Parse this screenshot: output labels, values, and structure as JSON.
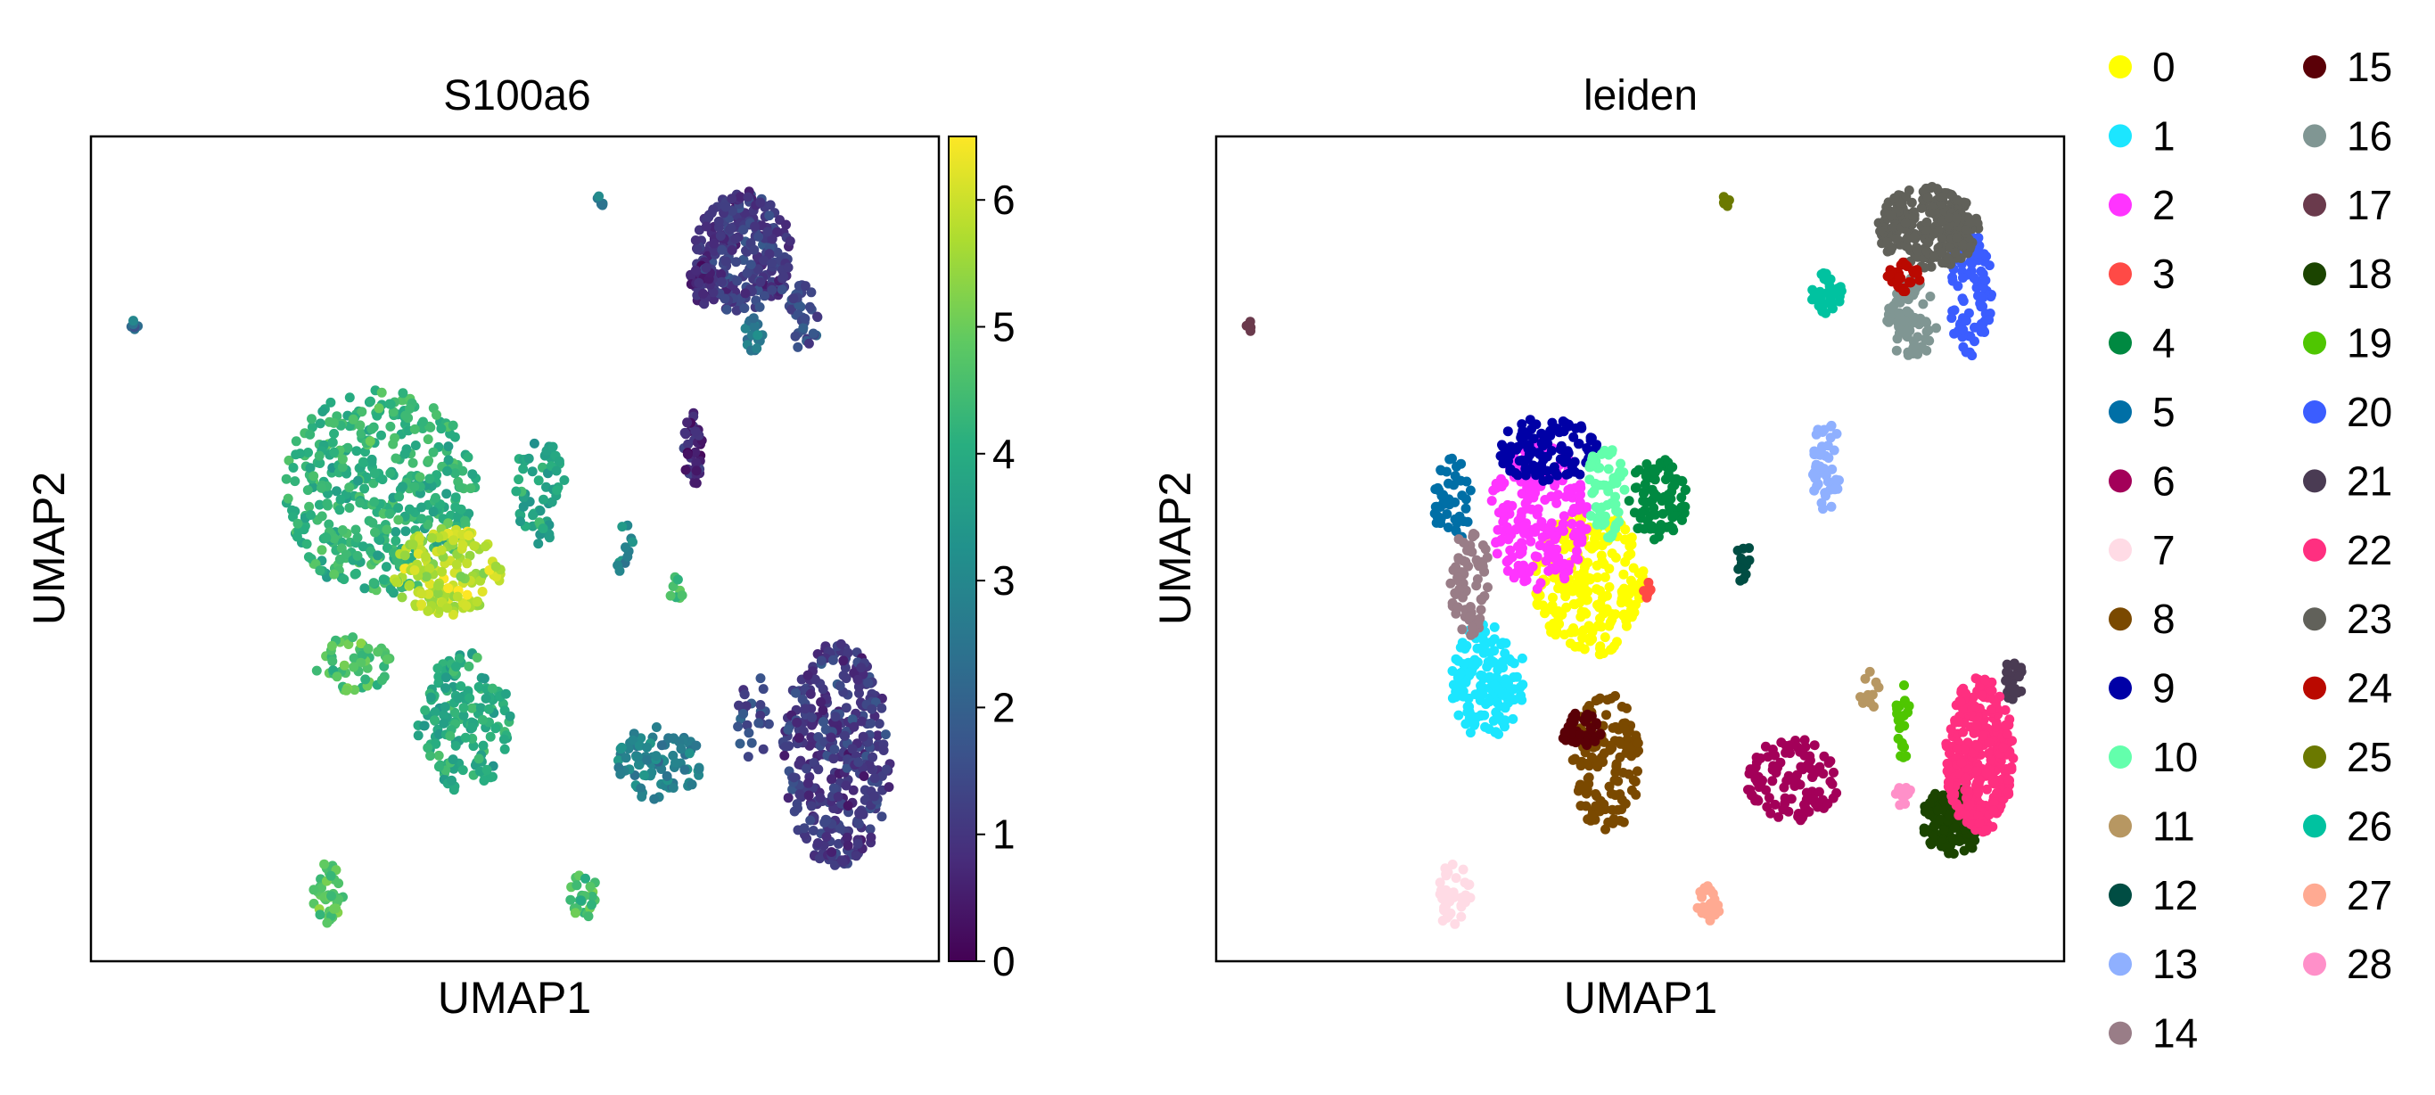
{
  "chart_data": [
    {
      "type": "scatter",
      "title": "S100a6",
      "xlabel": "UMAP1",
      "ylabel": "UMAP2",
      "x_range": [
        0,
        100
      ],
      "y_range": [
        0,
        100
      ],
      "colorbar": {
        "colormap": "viridis",
        "range": [
          0,
          6.5
        ],
        "ticks": [
          "0",
          "1",
          "2",
          "3",
          "4",
          "5",
          "6"
        ]
      },
      "clusters": [
        {
          "cx": 5,
          "cy": 77,
          "rx": 0.6,
          "ry": 0.8,
          "n": 6,
          "mean": 2.3
        },
        {
          "cx": 60,
          "cy": 92,
          "rx": 0.7,
          "ry": 0.9,
          "n": 6,
          "mean": 2.8
        },
        {
          "cx": 77,
          "cy": 86,
          "rx": 5.8,
          "ry": 7.5,
          "n": 280,
          "mean": 1.1
        },
        {
          "cx": 72,
          "cy": 82,
          "rx": 1.5,
          "ry": 2.5,
          "n": 35,
          "mean": 0.8
        },
        {
          "cx": 84,
          "cy": 78,
          "rx": 1.8,
          "ry": 4.2,
          "n": 40,
          "mean": 1.6
        },
        {
          "cx": 78,
          "cy": 76,
          "rx": 1.2,
          "ry": 2.0,
          "n": 20,
          "mean": 2.7
        },
        {
          "cx": 34,
          "cy": 57,
          "rx": 11.5,
          "ry": 12.5,
          "n": 420,
          "mean": 4.2
        },
        {
          "cx": 42,
          "cy": 47,
          "rx": 6.5,
          "ry": 5.5,
          "n": 160,
          "mean": 5.8
        },
        {
          "cx": 53,
          "cy": 57,
          "rx": 3.2,
          "ry": 6.5,
          "n": 60,
          "mean": 3.8
        },
        {
          "cx": 31,
          "cy": 36,
          "rx": 4.5,
          "ry": 3.5,
          "n": 50,
          "mean": 4.6
        },
        {
          "cx": 44,
          "cy": 29,
          "rx": 5.5,
          "ry": 8.5,
          "n": 160,
          "mean": 4.0
        },
        {
          "cx": 71,
          "cy": 62,
          "rx": 1.2,
          "ry": 4.5,
          "n": 40,
          "mean": 0.7
        },
        {
          "cx": 63,
          "cy": 50,
          "rx": 1.2,
          "ry": 3.2,
          "n": 12,
          "mean": 3.1
        },
        {
          "cx": 69,
          "cy": 45,
          "rx": 0.8,
          "ry": 1.8,
          "n": 8,
          "mean": 4.5
        },
        {
          "cx": 67,
          "cy": 24,
          "rx": 5.0,
          "ry": 4.5,
          "n": 90,
          "mean": 2.9
        },
        {
          "cx": 78,
          "cy": 30,
          "rx": 2.2,
          "ry": 5.5,
          "n": 25,
          "mean": 1.5
        },
        {
          "cx": 88,
          "cy": 25,
          "rx": 6.5,
          "ry": 13.5,
          "n": 380,
          "mean": 1.1
        },
        {
          "cx": 28,
          "cy": 8,
          "rx": 1.8,
          "ry": 4.0,
          "n": 40,
          "mean": 4.8
        },
        {
          "cx": 58,
          "cy": 8,
          "rx": 1.8,
          "ry": 2.8,
          "n": 25,
          "mean": 4.6
        }
      ]
    },
    {
      "type": "scatter",
      "title": "leiden",
      "xlabel": "UMAP1",
      "ylabel": "UMAP2",
      "x_range": [
        0,
        100
      ],
      "y_range": [
        0,
        100
      ],
      "legend_position": "right",
      "legend": [
        {
          "label": "0",
          "color": "#ffff00"
        },
        {
          "label": "1",
          "color": "#1ce6ff"
        },
        {
          "label": "2",
          "color": "#ff34ff"
        },
        {
          "label": "3",
          "color": "#ff4a46"
        },
        {
          "label": "4",
          "color": "#008941"
        },
        {
          "label": "5",
          "color": "#006fa6"
        },
        {
          "label": "6",
          "color": "#a30059"
        },
        {
          "label": "7",
          "color": "#ffdbe5"
        },
        {
          "label": "8",
          "color": "#7a4900"
        },
        {
          "label": "9",
          "color": "#0000a6"
        },
        {
          "label": "10",
          "color": "#63ffac"
        },
        {
          "label": "11",
          "color": "#b79762"
        },
        {
          "label": "12",
          "color": "#004d43"
        },
        {
          "label": "13",
          "color": "#8fb0ff"
        },
        {
          "label": "14",
          "color": "#997d87"
        },
        {
          "label": "15",
          "color": "#5a0007"
        },
        {
          "label": "16",
          "color": "#809693"
        },
        {
          "label": "17",
          "color": "#6a3a4c"
        },
        {
          "label": "18",
          "color": "#1b4400"
        },
        {
          "label": "19",
          "color": "#4fc601"
        },
        {
          "label": "20",
          "color": "#3b5dff"
        },
        {
          "label": "21",
          "color": "#4a3b53"
        },
        {
          "label": "22",
          "color": "#ff2f80"
        },
        {
          "label": "23",
          "color": "#61615a"
        },
        {
          "label": "24",
          "color": "#ba0900"
        },
        {
          "label": "25",
          "color": "#6b7900"
        },
        {
          "label": "26",
          "color": "#00c2a0"
        },
        {
          "label": "27",
          "color": "#ffaa92"
        },
        {
          "label": "28",
          "color": "#ff90c9"
        }
      ],
      "clusters": [
        {
          "cx": 44,
          "cy": 46,
          "rx": 6.5,
          "ry": 9.0,
          "n": 230,
          "label": "0"
        },
        {
          "cx": 32,
          "cy": 34,
          "rx": 4.5,
          "ry": 7.0,
          "n": 150,
          "label": "1"
        },
        {
          "cx": 38,
          "cy": 54,
          "rx": 5.8,
          "ry": 9.0,
          "n": 210,
          "label": "2"
        },
        {
          "cx": 51,
          "cy": 45,
          "rx": 0.8,
          "ry": 1.0,
          "n": 8,
          "label": "3"
        },
        {
          "cx": 52,
          "cy": 56,
          "rx": 3.5,
          "ry": 5.0,
          "n": 90,
          "label": "4"
        },
        {
          "cx": 28,
          "cy": 56,
          "rx": 2.5,
          "ry": 5.0,
          "n": 50,
          "label": "5"
        },
        {
          "cx": 68,
          "cy": 22,
          "rx": 5.5,
          "ry": 5.0,
          "n": 110,
          "label": "6"
        },
        {
          "cx": 28,
          "cy": 8,
          "rx": 2.0,
          "ry": 4.0,
          "n": 45,
          "label": "7"
        },
        {
          "cx": 46,
          "cy": 24,
          "rx": 4.0,
          "ry": 8.5,
          "n": 130,
          "label": "8"
        },
        {
          "cx": 39,
          "cy": 62,
          "rx": 6.0,
          "ry": 4.0,
          "n": 110,
          "label": "9"
        },
        {
          "cx": 46,
          "cy": 57,
          "rx": 2.3,
          "ry": 6.0,
          "n": 60,
          "label": "10"
        },
        {
          "cx": 77,
          "cy": 33,
          "rx": 1.2,
          "ry": 2.5,
          "n": 12,
          "label": "11"
        },
        {
          "cx": 62,
          "cy": 49,
          "rx": 1.0,
          "ry": 3.5,
          "n": 12,
          "label": "12"
        },
        {
          "cx": 72,
          "cy": 60,
          "rx": 1.8,
          "ry": 5.5,
          "n": 45,
          "label": "13"
        },
        {
          "cx": 30,
          "cy": 46,
          "rx": 2.5,
          "ry": 6.5,
          "n": 70,
          "label": "14"
        },
        {
          "cx": 43,
          "cy": 28,
          "rx": 2.5,
          "ry": 2.5,
          "n": 40,
          "label": "15"
        },
        {
          "cx": 82,
          "cy": 78,
          "rx": 3.0,
          "ry": 5.0,
          "n": 70,
          "label": "16"
        },
        {
          "cx": 4,
          "cy": 77,
          "rx": 0.6,
          "ry": 0.8,
          "n": 6,
          "label": "17"
        },
        {
          "cx": 87,
          "cy": 17,
          "rx": 4.0,
          "ry": 4.0,
          "n": 140,
          "label": "18"
        },
        {
          "cx": 81,
          "cy": 29,
          "rx": 1.0,
          "ry": 4.5,
          "n": 20,
          "label": "19"
        },
        {
          "cx": 89,
          "cy": 81,
          "rx": 2.5,
          "ry": 8.0,
          "n": 90,
          "label": "20"
        },
        {
          "cx": 94,
          "cy": 34,
          "rx": 1.2,
          "ry": 2.5,
          "n": 25,
          "label": "21"
        },
        {
          "cx": 90,
          "cy": 25,
          "rx": 4.0,
          "ry": 9.5,
          "n": 300,
          "label": "22"
        },
        {
          "cx": 84,
          "cy": 89,
          "rx": 6.0,
          "ry": 5.0,
          "n": 250,
          "label": "23"
        },
        {
          "cx": 81,
          "cy": 83,
          "rx": 2.0,
          "ry": 2.0,
          "n": 30,
          "label": "24"
        },
        {
          "cx": 60,
          "cy": 92,
          "rx": 0.6,
          "ry": 0.8,
          "n": 6,
          "label": "25"
        },
        {
          "cx": 72,
          "cy": 81,
          "rx": 2.0,
          "ry": 2.5,
          "n": 40,
          "label": "26"
        },
        {
          "cx": 58,
          "cy": 7,
          "rx": 1.6,
          "ry": 2.2,
          "n": 25,
          "label": "27"
        },
        {
          "cx": 81,
          "cy": 20,
          "rx": 1.2,
          "ry": 1.2,
          "n": 12,
          "label": "28"
        }
      ]
    }
  ]
}
